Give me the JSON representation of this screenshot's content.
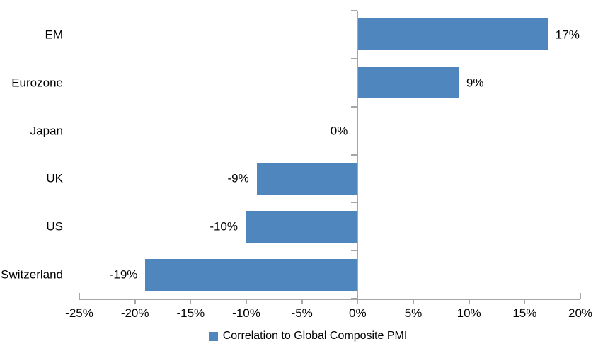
{
  "chart_data": {
    "type": "bar",
    "orientation": "horizontal",
    "title": "",
    "categories": [
      "EM",
      "Eurozone",
      "Japan",
      "UK",
      "US",
      "Switzerland"
    ],
    "values": [
      17,
      9,
      0,
      -9,
      -10,
      -19
    ],
    "data_labels": [
      "17%",
      "9%",
      "0%",
      "-9%",
      "-10%",
      "-19%"
    ],
    "series_name": "Correlation to Global Composite PMI",
    "legend": "Correlation to Global Composite PMI",
    "legend_position": "bottom",
    "xlim": [
      -25,
      20
    ],
    "xtick_values": [
      -25,
      -20,
      -15,
      -10,
      -5,
      0,
      5,
      10,
      15,
      20
    ],
    "xtick_labels": [
      "-25%",
      "-20%",
      "-15%",
      "-10%",
      "-5%",
      "0%",
      "5%",
      "10%",
      "15%",
      "20%"
    ],
    "grid": false,
    "bar_color": "#4E86BD",
    "axis_color": "#A6A6A6",
    "text_color": "#000000",
    "background_color": "#FFFFFF"
  }
}
